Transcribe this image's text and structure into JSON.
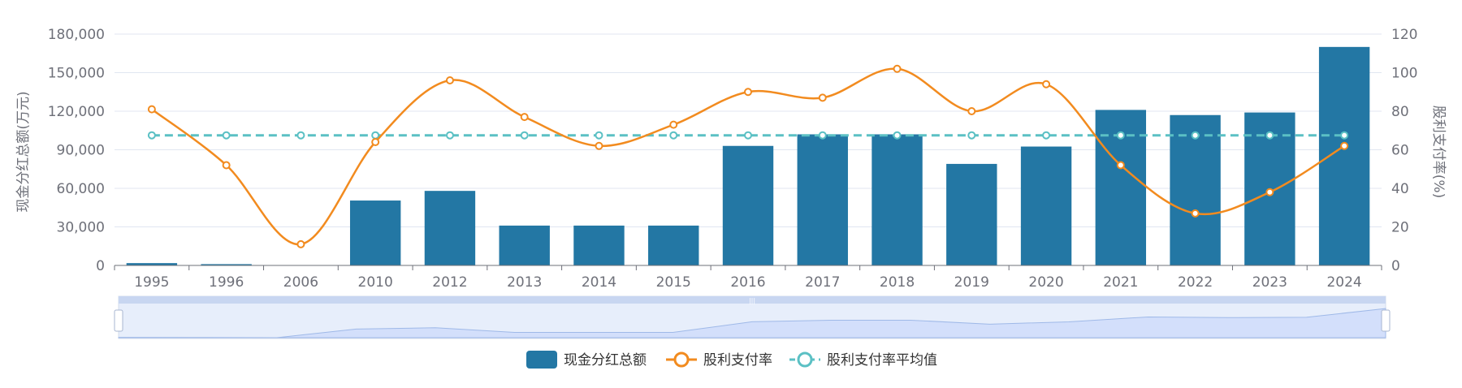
{
  "chart_data": {
    "type": "bar",
    "categories": [
      "1995",
      "1996",
      "2006",
      "2010",
      "2012",
      "2013",
      "2014",
      "2015",
      "2016",
      "2017",
      "2018",
      "2019",
      "2020",
      "2021",
      "2022",
      "2023",
      "2024"
    ],
    "series": [
      {
        "name": "现金分红总额",
        "type": "bar",
        "axis": "left",
        "color": "#2377a4",
        "values": [
          1800,
          1000,
          100,
          50500,
          58000,
          31000,
          31000,
          31000,
          93000,
          102000,
          102000,
          79000,
          92500,
          121000,
          117000,
          119000,
          170000
        ]
      },
      {
        "name": "股利支付率",
        "type": "line",
        "axis": "right",
        "color": "#f28b1f",
        "values": [
          81,
          52,
          11,
          64,
          96,
          77,
          62,
          73,
          90,
          87,
          102,
          80,
          94,
          52,
          27,
          38,
          62
        ]
      },
      {
        "name": "股利支付率平均值",
        "type": "line",
        "axis": "right",
        "dashed": true,
        "color": "#5bc0c4",
        "values": [
          67.5,
          67.5,
          67.5,
          67.5,
          67.5,
          67.5,
          67.5,
          67.5,
          67.5,
          67.5,
          67.5,
          67.5,
          67.5,
          67.5,
          67.5,
          67.5,
          67.5
        ]
      }
    ],
    "y_left": {
      "label": "现金分红总额(万元)",
      "ylim": [
        0,
        180000
      ],
      "ticks": [
        0,
        30000,
        60000,
        90000,
        120000,
        150000,
        180000
      ],
      "tick_labels": [
        "0",
        "30,000",
        "60,000",
        "90,000",
        "120,000",
        "150,000",
        "180,000"
      ]
    },
    "y_right": {
      "label": "股利支付率(%)",
      "ylim": [
        0,
        120
      ],
      "ticks": [
        0,
        20,
        40,
        60,
        80,
        100,
        120
      ],
      "tick_labels": [
        "0",
        "20",
        "40",
        "60",
        "80",
        "100",
        "120"
      ]
    },
    "grid": true,
    "legend": "bottom-center",
    "data_zoom": {
      "range": [
        0,
        100
      ]
    }
  }
}
